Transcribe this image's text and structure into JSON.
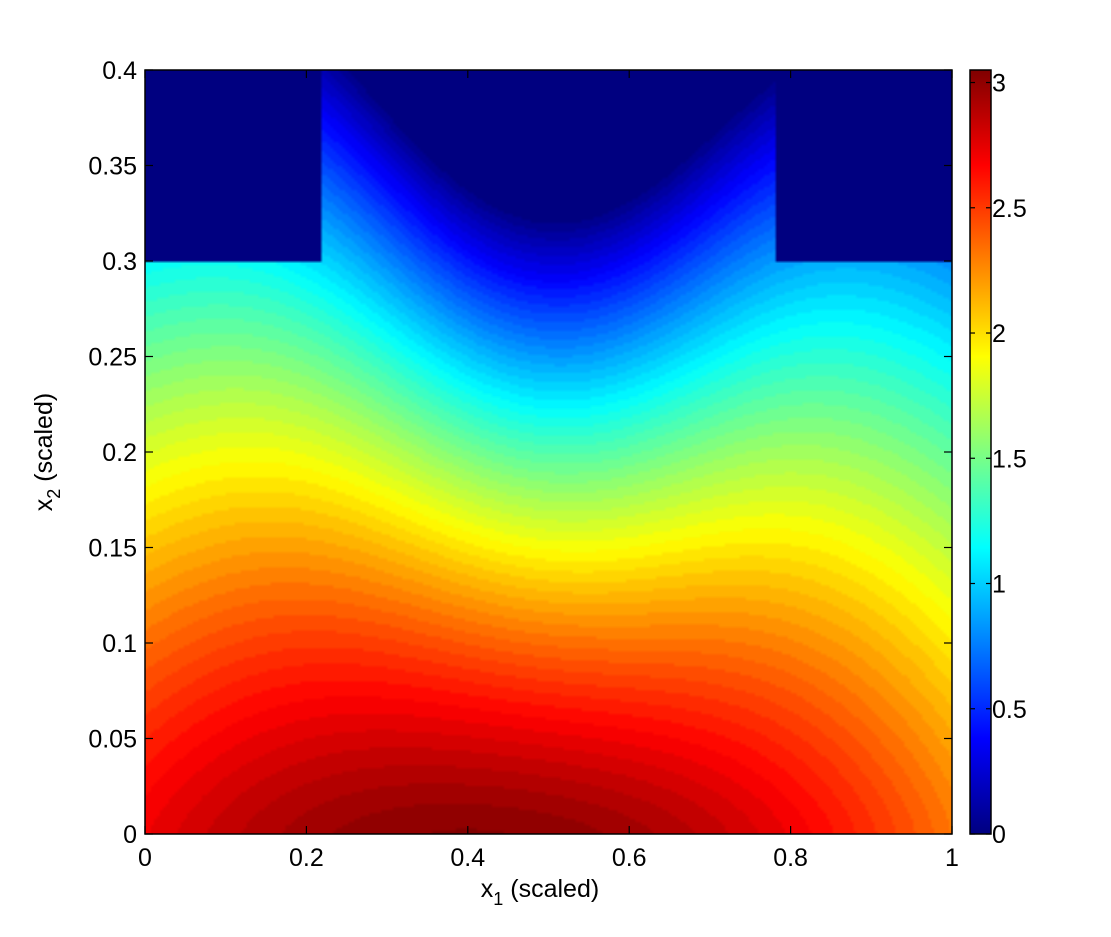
{
  "chart_data": {
    "type": "heatmap",
    "title": "",
    "xlabel": {
      "base": "x",
      "sub": "1",
      "rest": " (scaled)"
    },
    "ylabel": {
      "base": "x",
      "sub": "2",
      "rest": " (scaled)"
    },
    "xlim": [
      0,
      1
    ],
    "ylim": [
      0,
      0.4
    ],
    "x_ticks": [
      0,
      0.2,
      0.4,
      0.6,
      0.8,
      1
    ],
    "x_tick_labels": [
      "0",
      "0.2",
      "0.4",
      "0.6",
      "0.8",
      "1"
    ],
    "y_ticks": [
      0,
      0.05,
      0.1,
      0.15,
      0.2,
      0.25,
      0.3,
      0.35,
      0.4
    ],
    "y_tick_labels": [
      "0",
      "0.05",
      "0.1",
      "0.15",
      "0.2",
      "0.25",
      "0.3",
      "0.35",
      "0.4"
    ],
    "colorbar": {
      "colormap": "jet",
      "clim": [
        0,
        3.05
      ],
      "ticks": [
        0,
        0.5,
        1,
        1.5,
        2,
        2.5,
        3
      ],
      "tick_labels": [
        "0",
        "0.5",
        "1",
        "1.5",
        "2",
        "2.5",
        "3"
      ]
    },
    "field": {
      "peak_value": 3.05,
      "peak_location": {
        "x1": 0.45,
        "x2": 0.0
      },
      "corner_value_bottom_left": 2.35,
      "corner_value_bottom_right": 1.95,
      "zero_regions": [
        {
          "x1": [
            0.0,
            0.22
          ],
          "x2": [
            0.3,
            0.4
          ]
        },
        {
          "x1": [
            0.78,
            1.0
          ],
          "x2": [
            0.3,
            0.4
          ]
        }
      ],
      "low_region_top_center": {
        "x1": [
          0.34,
          0.66
        ],
        "x2": [
          0.35,
          0.4
        ],
        "value": 0.3
      }
    },
    "grid": false,
    "legend": "none"
  }
}
